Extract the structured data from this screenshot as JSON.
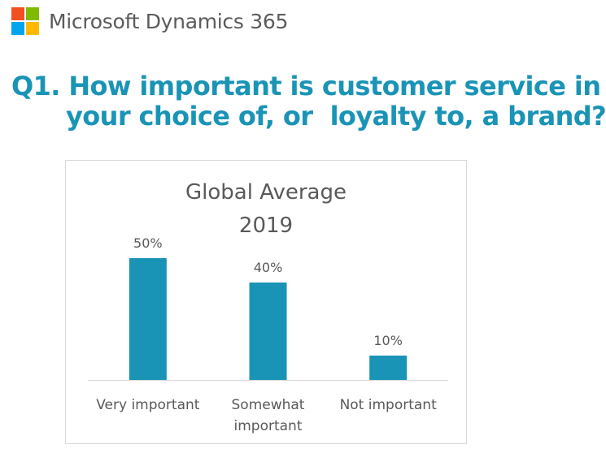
{
  "brand": {
    "name": "Microsoft Dynamics 365",
    "logo_colors": [
      "#f25022",
      "#7fba00",
      "#00a4ef",
      "#ffb900"
    ],
    "text_color": "#5b5b5b"
  },
  "question": {
    "line1": "Q1. How important is customer service in",
    "line2": "your choice of, or  loyalty to, a brand?",
    "color": "#1a94b6"
  },
  "chart_data": {
    "type": "bar",
    "title_line1": "Global Average",
    "title_line2": "2019",
    "categories": [
      [
        "Very important"
      ],
      [
        "Somewhat",
        "important"
      ],
      [
        "Not important"
      ]
    ],
    "values": [
      50,
      40,
      10
    ],
    "value_labels": [
      "50%",
      "40%",
      "10%"
    ],
    "ylim": [
      0,
      60
    ],
    "bar_color": "#1a94b6",
    "grid": false,
    "legend": "none"
  }
}
